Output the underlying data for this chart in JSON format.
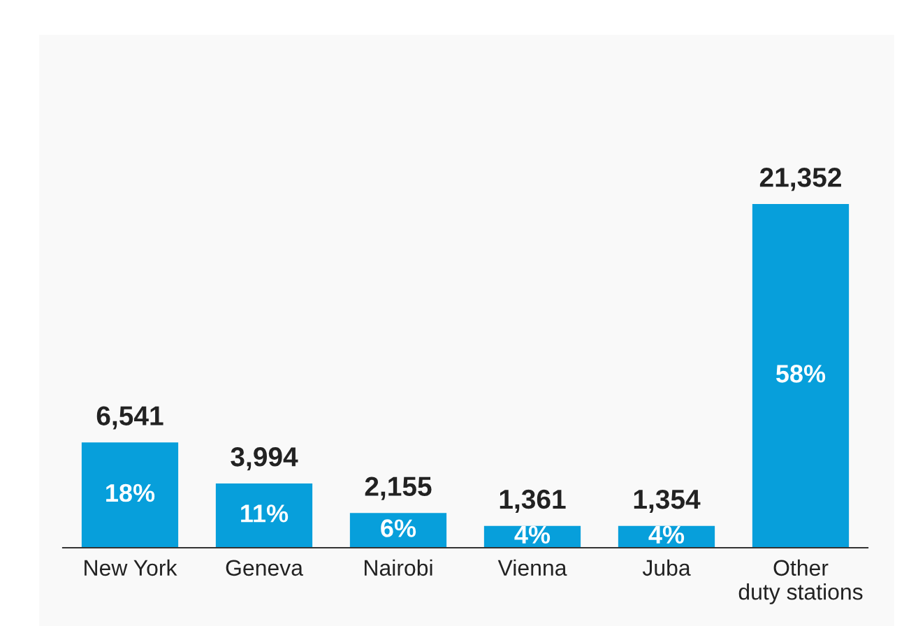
{
  "chart_data": {
    "type": "bar",
    "categories": [
      "New York",
      "Geneva",
      "Nairobi",
      "Vienna",
      "Juba",
      "Other\nduty stations"
    ],
    "values": [
      6541,
      3994,
      2155,
      1361,
      1354,
      21352
    ],
    "color": "#079fdb",
    "value_labels": [
      "6,541",
      "3,994",
      "2,155",
      "1,361",
      "1,354",
      "21,352"
    ],
    "annotations": [
      "18%",
      "11%",
      "6%",
      "4%",
      "4%",
      "58%"
    ],
    "grid": false,
    "legend": false
  }
}
